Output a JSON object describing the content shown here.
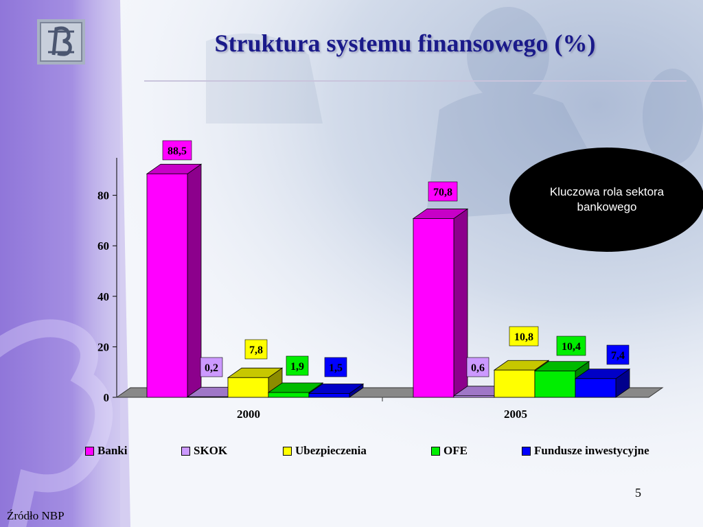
{
  "slide": {
    "title": "Struktura systemu finansowego (%)",
    "callout": "Kluczowa rola sektora bankowego",
    "page_number": "5",
    "source": "Źródło NBP"
  },
  "chart_data": {
    "type": "bar",
    "title": "Struktura systemu finansowego (%)",
    "categories": [
      "2000",
      "2005"
    ],
    "series": [
      {
        "name": "Banki",
        "values": [
          88.5,
          70.8
        ],
        "labels": [
          "88,5",
          "70,8"
        ],
        "color": "#ff00ff"
      },
      {
        "name": "SKOK",
        "values": [
          0.2,
          0.6
        ],
        "labels": [
          "0,2",
          "0,6"
        ],
        "color": "#cc99ff"
      },
      {
        "name": "Ubezpieczenia",
        "values": [
          7.8,
          10.8
        ],
        "labels": [
          "7,8",
          "10,8"
        ],
        "color": "#ffff00"
      },
      {
        "name": "OFE",
        "values": [
          1.9,
          10.4
        ],
        "labels": [
          "1,9",
          "10,4"
        ],
        "color": "#00ee00"
      },
      {
        "name": "Fundusze inwestycyjne",
        "values": [
          1.5,
          7.4
        ],
        "labels": [
          "1,5",
          "7,4"
        ],
        "color": "#0000ff"
      }
    ],
    "y_ticks": [
      0,
      20,
      40,
      60,
      80
    ],
    "ylim": [
      0,
      95
    ],
    "grid": false,
    "legend": "bottom",
    "three_d": true
  }
}
